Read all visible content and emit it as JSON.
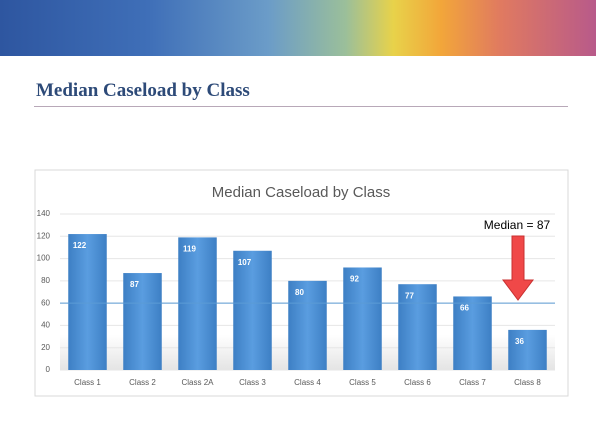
{
  "slide_title": "Median Caseload by Class",
  "chart_data": {
    "type": "bar",
    "title": "Median Caseload by Class",
    "categories": [
      "Class 1",
      "Class 2",
      "Class 2A",
      "Class 3",
      "Class 4",
      "Class 5",
      "Class 6",
      "Class 7",
      "Class 8"
    ],
    "values": [
      122,
      87,
      119,
      107,
      80,
      92,
      77,
      66,
      36
    ],
    "color": "#4a8fd4",
    "ylim": [
      0,
      140
    ],
    "yticks": [
      0,
      20,
      40,
      60,
      80,
      100,
      120,
      140
    ],
    "grid": true,
    "reference_line": 60,
    "annotation": "Median = 87"
  }
}
